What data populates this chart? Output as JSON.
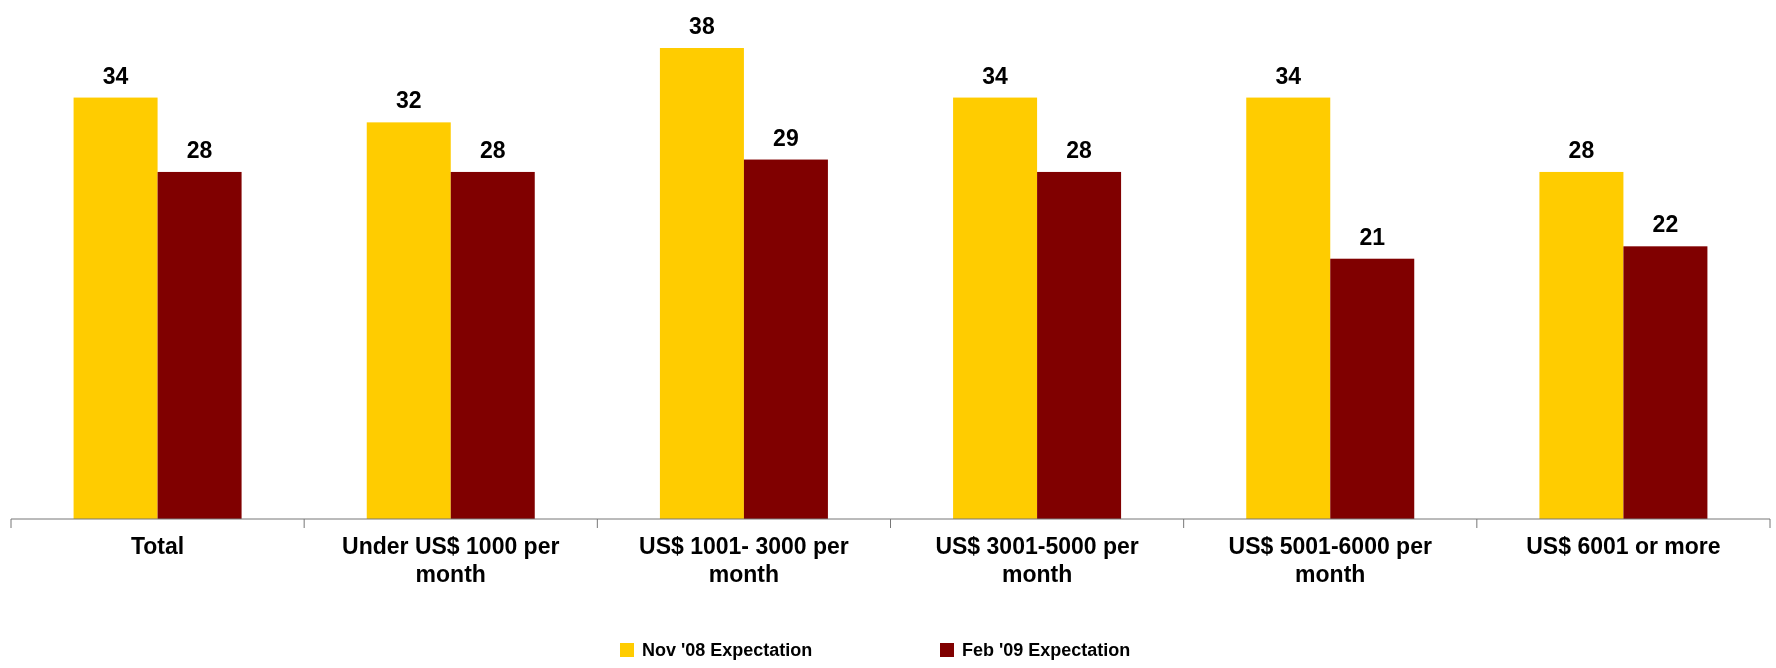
{
  "chart_data": {
    "type": "bar",
    "categories": [
      "Total",
      "Under US$ 1000 per month",
      "US$ 1001- 3000 per month",
      "US$ 3001-5000 per month",
      "US$ 5001-6000 per month",
      "US$ 6001 or more"
    ],
    "series": [
      {
        "name": "Nov '08 Expectation",
        "color": "#ffcc00",
        "values": [
          34,
          32,
          38,
          34,
          34,
          28
        ]
      },
      {
        "name": "Feb '09 Expectation",
        "color": "#800000",
        "values": [
          28,
          28,
          29,
          28,
          21,
          22
        ]
      }
    ],
    "data_labels": true,
    "legend": "bottom"
  }
}
